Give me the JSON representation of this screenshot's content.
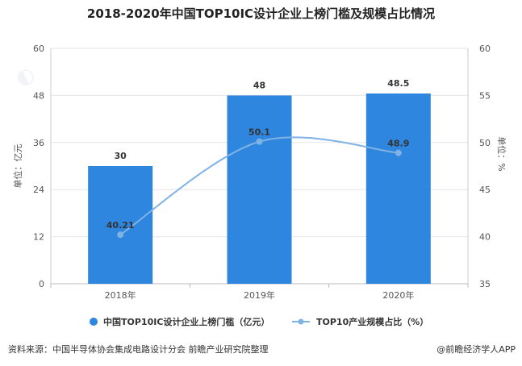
{
  "chart_data": {
    "type": "bar+line",
    "title": "2018-2020年中国TOP10IC设计企业上榜门槛及规模占比情况",
    "categories": [
      "2018年",
      "2019年",
      "2020年"
    ],
    "series": [
      {
        "name": "中国TOP10IC设计企业上榜门槛（亿元）",
        "type": "bar",
        "axis": "left",
        "values": [
          30,
          48,
          48.5
        ],
        "labels": [
          "30",
          "48",
          "48.5"
        ]
      },
      {
        "name": "TOP10产业规模占比（%）",
        "type": "line",
        "axis": "right",
        "values": [
          40.21,
          50.1,
          48.9
        ],
        "labels": [
          "40.21",
          "50.1",
          "48.9"
        ]
      }
    ],
    "y_left": {
      "label": "单位：亿元",
      "min": 0,
      "max": 60,
      "ticks": [
        0,
        12,
        24,
        36,
        48,
        60
      ]
    },
    "y_right": {
      "label": "单位：%",
      "min": 35,
      "max": 60,
      "ticks": [
        35,
        40,
        45,
        50,
        55,
        60
      ]
    },
    "grid": true,
    "legend": "bottom",
    "colors": {
      "bar": "#2e86de",
      "line": "#7fb2e5"
    }
  },
  "footer": {
    "source": "资料来源：中国半导体协会集成电路设计分会 前瞻产业研究院整理",
    "brand": "@前瞻经济学人APP"
  }
}
